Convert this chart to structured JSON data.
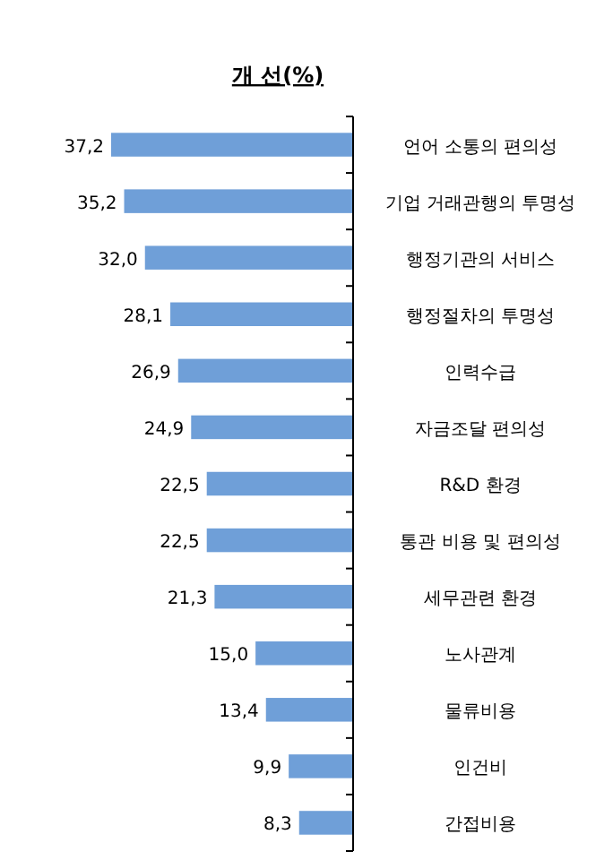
{
  "chart_data": {
    "type": "bar",
    "orientation": "horizontal",
    "title": "개 선(%)",
    "categories": [
      "언어 소통의 편의성",
      "기업 거래관행의 투명성",
      "행정기관의 서비스",
      "행정절차의 투명성",
      "인력수급",
      "자금조달 편의성",
      "R&D 환경",
      "통관 비용 및 편의성",
      "세무관련 환경",
      "노사관계",
      "물류비용",
      "인건비",
      "간접비용"
    ],
    "values": [
      37.2,
      35.2,
      32.0,
      28.1,
      26.9,
      24.9,
      22.5,
      22.5,
      21.3,
      15.0,
      13.4,
      9.9,
      8.3
    ],
    "value_labels": [
      "37,2",
      "35,2",
      "32,0",
      "28,1",
      "26,9",
      "24,9",
      "22,5",
      "22,5",
      "21,3",
      "15,0",
      "13,4",
      "9,9",
      "8,3"
    ],
    "color": "#6f9fd8"
  }
}
